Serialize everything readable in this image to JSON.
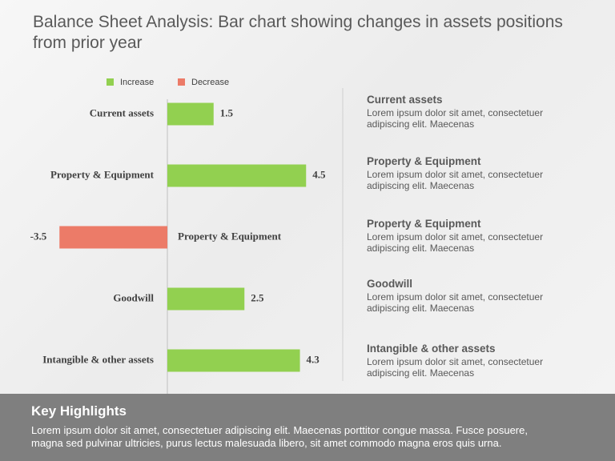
{
  "chart_data": {
    "type": "bar",
    "orientation": "horizontal",
    "title": "Balance Sheet Analysis: Bar chart showing changes in assets positions from prior year",
    "categories": [
      "Current assets",
      "Property & Equipment",
      "Property & Equipment",
      "Goodwill",
      "Intangible & other assets"
    ],
    "series": [
      {
        "name": "Increase",
        "color": "#92d050",
        "values": [
          1.5,
          4.5,
          null,
          2.5,
          4.3
        ]
      },
      {
        "name": "Decrease",
        "color": "#ec7b68",
        "values": [
          null,
          null,
          -3.5,
          null,
          null
        ]
      }
    ]
  },
  "notes": [
    {
      "title": "Current assets",
      "lines": [
        "Lorem ipsum dolor sit amet, consectetuer",
        "adipiscing elit. Maecenas"
      ]
    },
    {
      "title": "Property & Equipment",
      "lines": [
        "Lorem ipsum dolor sit amet, consectetuer",
        "adipiscing elit. Maecenas"
      ]
    },
    {
      "title": "Property & Equipment",
      "lines": [
        "Lorem ipsum dolor sit amet, consectetuer",
        "adipiscing elit. Maecenas"
      ]
    },
    {
      "title": "Goodwill",
      "lines": [
        "Lorem ipsum dolor sit amet, consectetuer",
        "adipiscing elit. Maecenas"
      ]
    },
    {
      "title": "Intangible  & other assets",
      "lines": [
        "Lorem ipsum dolor sit amet, consectetuer",
        "adipiscing elit. Maecenas"
      ]
    }
  ],
  "highlights": {
    "title": "Key Highlights",
    "lines": [
      "Lorem ipsum dolor sit amet, consectetuer adipiscing elit. Maecenas porttitor congue massa. Fusce posuere,",
      "magna sed pulvinar ultricies, purus lectus malesuada libero, sit amet commodo magna eros quis urna."
    ]
  }
}
